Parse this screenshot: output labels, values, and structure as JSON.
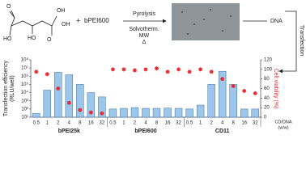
{
  "scheme": {
    "atoms": [
      "O",
      "OH",
      "HO",
      "HO",
      "O",
      "OH"
    ],
    "plus": "+",
    "reagent": "bPEI600",
    "arrow_top": "Pyrolysis",
    "arrow_bottom": [
      "Solvotherm.",
      "MW",
      "Δ"
    ],
    "dna": "DNA",
    "transfection": "Transfection"
  },
  "chart_data": {
    "type": "bar",
    "y_label": [
      "Transfection efficiency",
      "(RLU/well)"
    ],
    "y2_label": "Cell viability (%)",
    "x_label": [
      "CD/DNA",
      "(w/w)"
    ],
    "categories": [
      "0.5",
      "1",
      "2",
      "4",
      "8",
      "16",
      "32",
      "0.5",
      "1",
      "2",
      "4",
      "8",
      "16",
      "32",
      "0.5",
      "1",
      "2",
      "4",
      "8",
      "16",
      "32"
    ],
    "groups": [
      "bPEI25k",
      "bPEI600",
      "CD11"
    ],
    "ylog": true,
    "ylim": [
      10,
      100000000
    ],
    "yticks": [
      {
        "value": 10,
        "label": "10¹"
      },
      {
        "value": 100,
        "label": "10²"
      },
      {
        "value": 1000,
        "label": "10³"
      },
      {
        "value": 10000,
        "label": "10⁴"
      },
      {
        "value": 100000,
        "label": "10⁵"
      },
      {
        "value": 1000000,
        "label": "10⁶"
      },
      {
        "value": 10000000,
        "label": "10⁷"
      },
      {
        "value": 100000000,
        "label": "10⁸"
      }
    ],
    "y2lim": [
      0,
      120
    ],
    "y2ticks": [
      0,
      20,
      40,
      60,
      80,
      100,
      120
    ],
    "series": [
      {
        "color": "#9cc7ea",
        "values": [
          30,
          20000,
          3000000,
          1500000,
          100000,
          10000,
          3000,
          100,
          120,
          150,
          120,
          120,
          130,
          120,
          100,
          300,
          100000,
          4000000,
          100000,
          100,
          100
        ]
      },
      {
        "axis": "y2",
        "color": "#e8262b",
        "values": [
          95,
          90,
          60,
          30,
          15,
          10,
          8,
          100,
          100,
          98,
          100,
          102,
          95,
          100,
          95,
          100,
          95,
          80,
          65,
          55,
          50
        ]
      }
    ]
  }
}
